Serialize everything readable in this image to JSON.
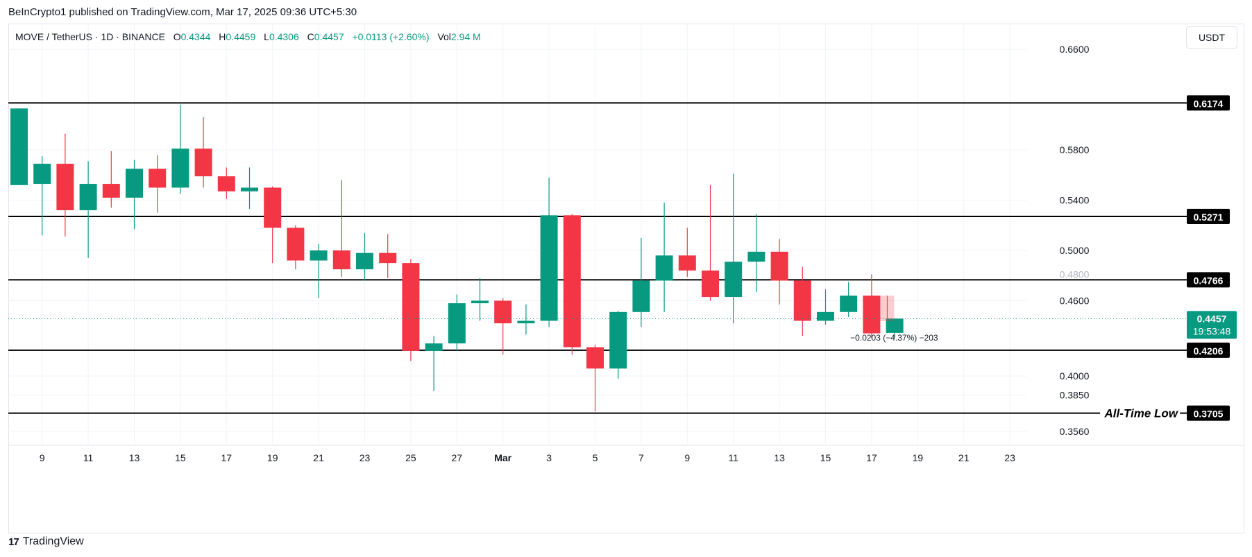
{
  "header": {
    "publisher": "BeInCrypto1 published on TradingView.com, Mar 17, 2025 09:36 UTC+5:30"
  },
  "legend": {
    "symbol": "MOVE / TetherUS · 1D · BINANCE",
    "o_label": "O",
    "o_value": "0.4344",
    "h_label": "H",
    "h_value": "0.4459",
    "l_label": "L",
    "l_value": "0.4306",
    "c_label": "C",
    "c_value": "0.4457",
    "change": "+0.0113 (+2.60%)",
    "vol_label": "Vol",
    "vol_value": "2.94 M"
  },
  "toolbar": {
    "currency": "USDT"
  },
  "footer": {
    "logo_text": "17",
    "brand": "TradingView"
  },
  "colors": {
    "up": "#089981",
    "down": "#f23645",
    "grid": "#f0f3fa",
    "level": "#000000",
    "text": "#131722"
  },
  "chart_data": {
    "type": "candlestick",
    "title": "MOVE / TetherUS · 1D · BINANCE",
    "ylim": [
      0.346,
      0.68
    ],
    "y_ticks": [
      {
        "value": 0.66,
        "label": "0.6600"
      },
      {
        "value": 0.58,
        "label": "0.5800"
      },
      {
        "value": 0.54,
        "label": "0.5400"
      },
      {
        "value": 0.5,
        "label": "0.5000"
      },
      {
        "value": 0.46,
        "label": "0.4600"
      },
      {
        "value": 0.4,
        "label": "0.4000"
      },
      {
        "value": 0.385,
        "label": "0.3850"
      },
      {
        "value": 0.356,
        "label": "0.3560"
      }
    ],
    "x_ticks": [
      {
        "index": 1,
        "label": "9"
      },
      {
        "index": 3,
        "label": "11"
      },
      {
        "index": 5,
        "label": "13"
      },
      {
        "index": 7,
        "label": "15"
      },
      {
        "index": 9,
        "label": "17"
      },
      {
        "index": 11,
        "label": "19"
      },
      {
        "index": 13,
        "label": "21"
      },
      {
        "index": 15,
        "label": "23"
      },
      {
        "index": 17,
        "label": "25"
      },
      {
        "index": 19,
        "label": "27"
      },
      {
        "index": 21,
        "label": "Mar"
      },
      {
        "index": 23,
        "label": "3"
      },
      {
        "index": 25,
        "label": "5"
      },
      {
        "index": 27,
        "label": "7"
      },
      {
        "index": 29,
        "label": "9"
      },
      {
        "index": 31,
        "label": "11"
      },
      {
        "index": 33,
        "label": "13"
      },
      {
        "index": 35,
        "label": "15"
      },
      {
        "index": 37,
        "label": "17"
      },
      {
        "index": 39,
        "label": "19"
      },
      {
        "index": 41,
        "label": "21"
      },
      {
        "index": 43,
        "label": "23"
      }
    ],
    "candles": [
      {
        "o": 0.552,
        "h": 0.613,
        "l": 0.552,
        "c": 0.613
      },
      {
        "o": 0.553,
        "h": 0.575,
        "l": 0.512,
        "c": 0.569
      },
      {
        "o": 0.569,
        "h": 0.593,
        "l": 0.511,
        "c": 0.532
      },
      {
        "o": 0.532,
        "h": 0.571,
        "l": 0.494,
        "c": 0.553
      },
      {
        "o": 0.553,
        "h": 0.579,
        "l": 0.534,
        "c": 0.542
      },
      {
        "o": 0.542,
        "h": 0.572,
        "l": 0.517,
        "c": 0.565
      },
      {
        "o": 0.565,
        "h": 0.576,
        "l": 0.53,
        "c": 0.55
      },
      {
        "o": 0.55,
        "h": 0.616,
        "l": 0.545,
        "c": 0.581
      },
      {
        "o": 0.581,
        "h": 0.606,
        "l": 0.55,
        "c": 0.559
      },
      {
        "o": 0.559,
        "h": 0.566,
        "l": 0.541,
        "c": 0.547
      },
      {
        "o": 0.547,
        "h": 0.566,
        "l": 0.533,
        "c": 0.55
      },
      {
        "o": 0.55,
        "h": 0.551,
        "l": 0.49,
        "c": 0.518
      },
      {
        "o": 0.518,
        "h": 0.52,
        "l": 0.485,
        "c": 0.492
      },
      {
        "o": 0.492,
        "h": 0.505,
        "l": 0.462,
        "c": 0.5
      },
      {
        "o": 0.5,
        "h": 0.556,
        "l": 0.479,
        "c": 0.485
      },
      {
        "o": 0.485,
        "h": 0.514,
        "l": 0.476,
        "c": 0.498
      },
      {
        "o": 0.498,
        "h": 0.513,
        "l": 0.478,
        "c": 0.49
      },
      {
        "o": 0.49,
        "h": 0.493,
        "l": 0.412,
        "c": 0.42
      },
      {
        "o": 0.42,
        "h": 0.432,
        "l": 0.388,
        "c": 0.426
      },
      {
        "o": 0.426,
        "h": 0.465,
        "l": 0.42,
        "c": 0.458
      },
      {
        "o": 0.458,
        "h": 0.478,
        "l": 0.444,
        "c": 0.46
      },
      {
        "o": 0.46,
        "h": 0.462,
        "l": 0.417,
        "c": 0.442
      },
      {
        "o": 0.442,
        "h": 0.457,
        "l": 0.433,
        "c": 0.444
      },
      {
        "o": 0.444,
        "h": 0.558,
        "l": 0.439,
        "c": 0.528
      },
      {
        "o": 0.528,
        "h": 0.529,
        "l": 0.417,
        "c": 0.423
      },
      {
        "o": 0.423,
        "h": 0.425,
        "l": 0.372,
        "c": 0.406
      },
      {
        "o": 0.406,
        "h": 0.452,
        "l": 0.398,
        "c": 0.451
      },
      {
        "o": 0.451,
        "h": 0.51,
        "l": 0.439,
        "c": 0.476
      },
      {
        "o": 0.476,
        "h": 0.538,
        "l": 0.451,
        "c": 0.496
      },
      {
        "o": 0.496,
        "h": 0.518,
        "l": 0.479,
        "c": 0.484
      },
      {
        "o": 0.484,
        "h": 0.552,
        "l": 0.46,
        "c": 0.463
      },
      {
        "o": 0.463,
        "h": 0.561,
        "l": 0.442,
        "c": 0.491
      },
      {
        "o": 0.491,
        "h": 0.529,
        "l": 0.467,
        "c": 0.499
      },
      {
        "o": 0.499,
        "h": 0.509,
        "l": 0.457,
        "c": 0.476
      },
      {
        "o": 0.476,
        "h": 0.487,
        "l": 0.432,
        "c": 0.444
      },
      {
        "o": 0.444,
        "h": 0.469,
        "l": 0.441,
        "c": 0.451
      },
      {
        "o": 0.451,
        "h": 0.475,
        "l": 0.447,
        "c": 0.464
      },
      {
        "o": 0.464,
        "h": 0.481,
        "l": 0.43,
        "c": 0.434
      },
      {
        "o": 0.4344,
        "h": 0.4459,
        "l": 0.4306,
        "c": 0.4457
      }
    ],
    "levels": [
      {
        "value": 0.6174,
        "label": "0.6174",
        "annotation": ""
      },
      {
        "value": 0.5271,
        "label": "0.5271",
        "annotation": ""
      },
      {
        "value": 0.4766,
        "label": "0.4766",
        "annotation": ""
      },
      {
        "value": 0.4206,
        "label": "0.4206",
        "annotation": ""
      },
      {
        "value": 0.3705,
        "label": "0.3705",
        "annotation": "All-Time Low"
      }
    ],
    "current_price": {
      "value": 0.4457,
      "label": "0.4457",
      "countdown": "19:53:48"
    },
    "measure": {
      "from": 0.464,
      "to": 0.4437,
      "label": "−0.0203 (−4.37%) −203"
    },
    "hidden_partial_tick": "0.4800"
  }
}
